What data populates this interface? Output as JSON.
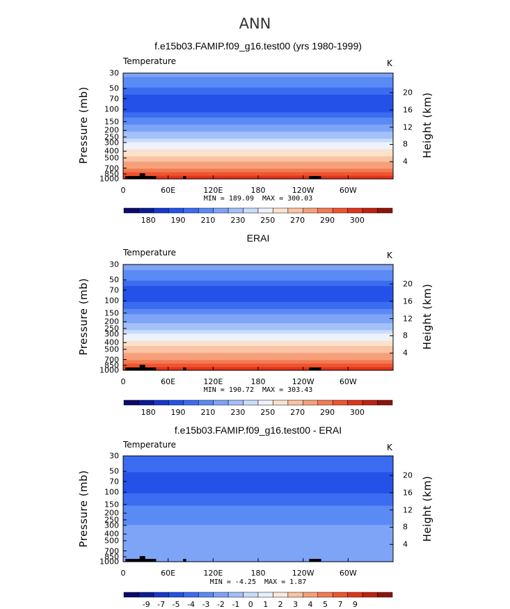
{
  "figure": {
    "title": "ANN",
    "units": "K",
    "ylabel_left": "Pressure  (mb)",
    "ylabel_right": "Height  (km)"
  },
  "colors": {
    "temp_scale": [
      "#0c0a6b",
      "#0a1c96",
      "#1638cc",
      "#2452e8",
      "#3b6cf2",
      "#5b8af5",
      "#7ea4f7",
      "#a4c0f9",
      "#c9dcfb",
      "#eef2fb",
      "#fbe2cd",
      "#f9c3a4",
      "#f6a07a",
      "#f37a52",
      "#ef5430",
      "#e2341c",
      "#c0220f",
      "#8e1409"
    ],
    "diff_scale": [
      "#0c0a6b",
      "#0a1c96",
      "#1638cc",
      "#2452e8",
      "#3b6cf2",
      "#5b8af5",
      "#7ea4f7",
      "#a4c0f9",
      "#c9dcfb",
      "#e6effc",
      "#fbe8d9",
      "#f9c3a4",
      "#f6a07a",
      "#f37a52",
      "#ef5430",
      "#e2341c",
      "#c0220f",
      "#8e1409"
    ],
    "topography": "#000000"
  },
  "chart_data": [
    {
      "type": "heatmap",
      "panel_title": "f.e15b03.FAMIP.f09_g16.test00 (yrs 1980-1999)",
      "variable": "Temperature",
      "units": "K",
      "x_ticks": [
        "0",
        "60E",
        "120E",
        "180",
        "120W",
        "60W"
      ],
      "x_values": [
        0,
        60,
        120,
        180,
        240,
        300
      ],
      "xlim": [
        0,
        360
      ],
      "y_ticks": [
        30,
        50,
        70,
        100,
        150,
        200,
        250,
        300,
        400,
        500,
        700,
        850,
        1000
      ],
      "ylim": [
        1000,
        30
      ],
      "height_ticks_km": [
        4,
        8,
        12,
        16,
        20
      ],
      "min_label": "MIN = 189.09",
      "max_label": "MAX = 300.03",
      "min": 189.09,
      "max": 300.03,
      "colorbar_labels": [
        "180",
        "190",
        "210",
        "230",
        "250",
        "270",
        "290",
        "300"
      ],
      "profile": [
        {
          "p": 1000,
          "t": 295
        },
        {
          "p": 925,
          "t": 291
        },
        {
          "p": 850,
          "t": 287
        },
        {
          "p": 700,
          "t": 279
        },
        {
          "p": 600,
          "t": 272
        },
        {
          "p": 500,
          "t": 264
        },
        {
          "p": 400,
          "t": 253
        },
        {
          "p": 300,
          "t": 240
        },
        {
          "p": 250,
          "t": 228
        },
        {
          "p": 200,
          "t": 218
        },
        {
          "p": 150,
          "t": 208
        },
        {
          "p": 100,
          "t": 198
        },
        {
          "p": 70,
          "t": 196
        },
        {
          "p": 50,
          "t": 204
        },
        {
          "p": 30,
          "t": 212
        }
      ]
    },
    {
      "type": "heatmap",
      "panel_title": "ERAI",
      "variable": "Temperature",
      "units": "K",
      "x_ticks": [
        "0",
        "60E",
        "120E",
        "180",
        "120W",
        "60W"
      ],
      "x_values": [
        0,
        60,
        120,
        180,
        240,
        300
      ],
      "xlim": [
        0,
        360
      ],
      "y_ticks": [
        30,
        50,
        70,
        100,
        150,
        200,
        250,
        300,
        400,
        500,
        700,
        850,
        1000
      ],
      "ylim": [
        1000,
        30
      ],
      "height_ticks_km": [
        4,
        8,
        12,
        16,
        20
      ],
      "min_label": "MIN = 190.72",
      "max_label": "MAX = 303.43",
      "min": 190.72,
      "max": 303.43,
      "colorbar_labels": [
        "180",
        "190",
        "210",
        "230",
        "250",
        "270",
        "290",
        "300"
      ],
      "profile": [
        {
          "p": 1000,
          "t": 296
        },
        {
          "p": 925,
          "t": 292
        },
        {
          "p": 850,
          "t": 288
        },
        {
          "p": 700,
          "t": 280
        },
        {
          "p": 600,
          "t": 273
        },
        {
          "p": 500,
          "t": 265
        },
        {
          "p": 400,
          "t": 254
        },
        {
          "p": 300,
          "t": 241
        },
        {
          "p": 250,
          "t": 229
        },
        {
          "p": 200,
          "t": 219
        },
        {
          "p": 150,
          "t": 209
        },
        {
          "p": 100,
          "t": 199
        },
        {
          "p": 70,
          "t": 197
        },
        {
          "p": 50,
          "t": 205
        },
        {
          "p": 30,
          "t": 213
        }
      ]
    },
    {
      "type": "heatmap",
      "panel_title": "f.e15b03.FAMIP.f09_g16.test00 - ERAI",
      "variable": "Temperature",
      "units": "K",
      "x_ticks": [
        "0",
        "60E",
        "120E",
        "180",
        "120W",
        "60W"
      ],
      "x_values": [
        0,
        60,
        120,
        180,
        240,
        300
      ],
      "xlim": [
        0,
        360
      ],
      "y_ticks": [
        30,
        50,
        70,
        100,
        150,
        200,
        250,
        300,
        400,
        500,
        700,
        850,
        1000
      ],
      "ylim": [
        1000,
        30
      ],
      "height_ticks_km": [
        4,
        8,
        12,
        16,
        20
      ],
      "min_label": "MIN =   -4.25",
      "max_label": "MAX =    1.87",
      "min": -4.25,
      "max": 1.87,
      "colorbar_labels": [
        "-9",
        "-7",
        "-5",
        "-4",
        "-3",
        "-2",
        "-1",
        "0",
        "1",
        "2",
        "3",
        "4",
        "5",
        "7",
        "9"
      ],
      "profile": [
        {
          "p": 1000,
          "t": -1
        },
        {
          "p": 700,
          "t": -1
        },
        {
          "p": 300,
          "t": -1
        },
        {
          "p": 200,
          "t": -2
        },
        {
          "p": 150,
          "t": -2
        },
        {
          "p": 100,
          "t": -3
        },
        {
          "p": 70,
          "t": -3.6
        },
        {
          "p": 50,
          "t": -3
        },
        {
          "p": 30,
          "t": -3
        }
      ]
    }
  ]
}
